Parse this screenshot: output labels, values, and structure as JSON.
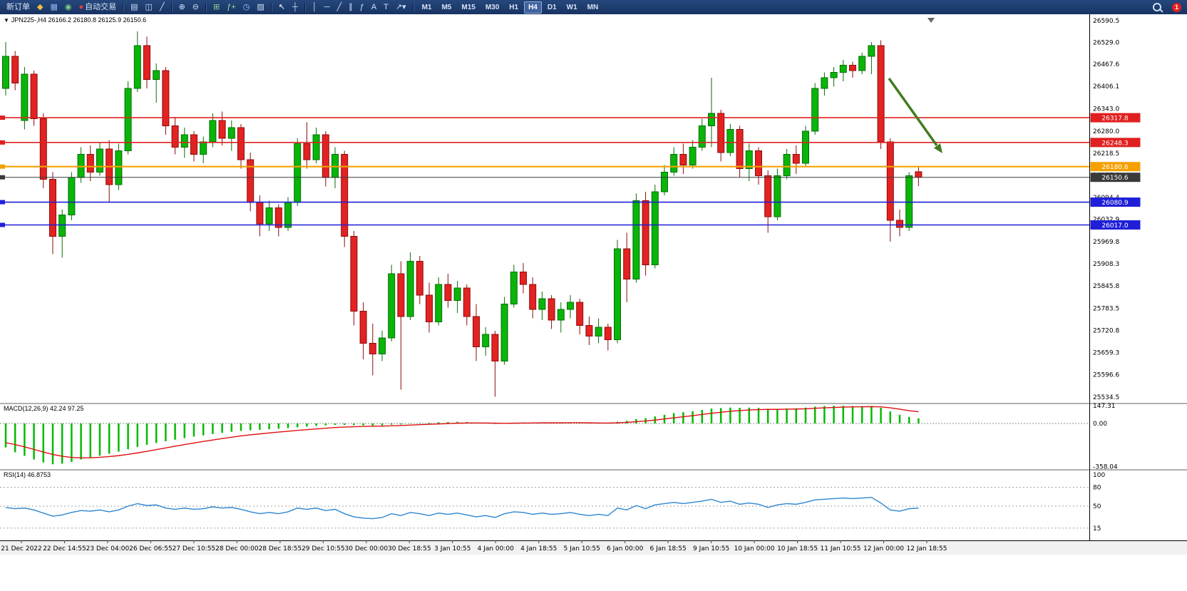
{
  "toolbar": {
    "items": [
      {
        "name": "new-order-button",
        "label": "新订单"
      },
      {
        "name": "metaeditor-button",
        "icon": "metaeditor-icon",
        "glyph": "◆",
        "color": "#f0c040"
      },
      {
        "name": "market-watch-button",
        "icon": "market-watch-icon",
        "glyph": "▦",
        "color": "#8ab4f8"
      },
      {
        "name": "navigator-button",
        "icon": "navigator-icon",
        "glyph": "◉",
        "color": "#7fd07f"
      },
      {
        "name": "auto-trading-button",
        "icon": "auto-trading-icon",
        "glyph": "●",
        "color": "#e04040",
        "label": "自动交易"
      },
      {
        "type": "sep"
      },
      {
        "name": "bar-chart-button",
        "icon": "bar-chart-icon",
        "glyph": "▤",
        "color": "#cfe0f8"
      },
      {
        "name": "candlestick-chart-button",
        "icon": "candlestick-chart-icon",
        "glyph": "◫",
        "color": "#cfe0f8"
      },
      {
        "name": "line-chart-button",
        "icon": "line-chart-icon",
        "glyph": "╱",
        "color": "#cfe0f8"
      },
      {
        "type": "sep"
      },
      {
        "name": "zoom-in-button",
        "icon": "zoom-in-icon",
        "glyph": "⊕",
        "color": "#cfe0f8"
      },
      {
        "name": "zoom-out-button",
        "icon": "zoom-out-icon",
        "glyph": "⊖",
        "color": "#cfe0f8"
      },
      {
        "type": "sep"
      },
      {
        "name": "tile-windows-button",
        "icon": "tile-windows-icon",
        "glyph": "⊞",
        "color": "#8fd08f"
      },
      {
        "name": "indicators-button",
        "icon": "indicators-icon",
        "glyph": "ƒ+",
        "color": "#9fe09f"
      },
      {
        "name": "periods-button",
        "icon": "periods-icon",
        "glyph": "◷",
        "color": "#9ec5f8"
      },
      {
        "name": "templates-button",
        "icon": "templates-icon",
        "glyph": "▨",
        "color": "#cfe0f8"
      },
      {
        "type": "sep"
      },
      {
        "name": "cursor-button",
        "icon": "cursor-icon",
        "glyph": "↖",
        "color": "#ffffff"
      },
      {
        "name": "crosshair-button",
        "icon": "crosshair-icon",
        "glyph": "┼",
        "color": "#cfe0f8"
      },
      {
        "type": "sep"
      },
      {
        "name": "vertical-line-button",
        "icon": "vertical-line-icon",
        "glyph": "│",
        "color": "#cfe0f8"
      },
      {
        "name": "horizontal-line-button",
        "icon": "horizontal-line-icon",
        "glyph": "─",
        "color": "#cfe0f8"
      },
      {
        "name": "trendline-button",
        "icon": "trendline-icon",
        "glyph": "╱",
        "color": "#cfe0f8"
      },
      {
        "name": "equidistant-channel-button",
        "icon": "channel-icon",
        "glyph": "∥",
        "color": "#cfe0f8"
      },
      {
        "name": "fibonacci-button",
        "icon": "fibonacci-icon",
        "glyph": "ƒ",
        "color": "#cfe0f8"
      },
      {
        "name": "text-button",
        "icon": "text-icon",
        "glyph": "A",
        "color": "#cfe0f8"
      },
      {
        "name": "text-label-button",
        "icon": "text-label-icon",
        "glyph": "T",
        "color": "#cfe0f8"
      },
      {
        "name": "arrows-dropdown-button",
        "icon": "arrow-shapes-icon",
        "glyph": "↗▾",
        "color": "#cfe0f8"
      },
      {
        "type": "sep"
      }
    ],
    "timeframes": {
      "items": [
        "M1",
        "M5",
        "M15",
        "M30",
        "H1",
        "H4",
        "D1",
        "W1",
        "MN"
      ],
      "active": "H4"
    },
    "notification_count": "1"
  },
  "chart_data": {
    "type": "candlestick",
    "symbol": "JPN225-",
    "period": "H4",
    "header": {
      "symbol_period": "JPN225-,H4",
      "ohlc": "26166.2 26180.8 26125.9 26150.6",
      "one_click_glyph": "▼"
    },
    "current_ohlc": {
      "open": 26166.2,
      "high": 26180.8,
      "low": 26125.9,
      "close": 26150.6
    },
    "colors": {
      "bull": "#09b509",
      "bull_border": "#056e05",
      "bear": "#e32222",
      "bear_border": "#8e0b0b",
      "macd_histogram": "#00bb00",
      "macd_signal": "#dd1111",
      "rsi": "#2e86d0",
      "arrow": "#3f7d1f",
      "resistance": "#e02020",
      "pivot": "#f5a000",
      "support": "#1f1fd8",
      "current_price": "#3a3a3a"
    },
    "price_axis": {
      "labels": [
        {
          "t": "26590.5",
          "v": 26590.5
        },
        {
          "t": "26529.0",
          "v": 26529.0
        },
        {
          "t": "26467.6",
          "v": 26467.6
        },
        {
          "t": "26406.1",
          "v": 26406.1
        },
        {
          "t": "26343.0",
          "v": 26343.0
        },
        {
          "t": "26280.0",
          "v": 26280.0
        },
        {
          "t": "26218.5",
          "v": 26218.5
        },
        {
          "t": "26157.0",
          "v": 26157.0
        },
        {
          "t": "26094.4",
          "v": 26094.4
        },
        {
          "t": "26032.9",
          "v": 26032.9
        },
        {
          "t": "25969.8",
          "v": 25969.8
        },
        {
          "t": "25908.3",
          "v": 25908.3
        },
        {
          "t": "25845.8",
          "v": 25845.8
        },
        {
          "t": "25783.5",
          "v": 25783.5
        },
        {
          "t": "25720.8",
          "v": 25720.8
        },
        {
          "t": "25659.3",
          "v": 25659.3
        },
        {
          "t": "25596.6",
          "v": 25596.6
        },
        {
          "t": "25534.5",
          "v": 25534.5
        }
      ]
    },
    "hlines": [
      {
        "name": "resistance-line-1",
        "label": "26317.8",
        "value": 26317.8,
        "color": "#e02020",
        "width": 1.6
      },
      {
        "name": "resistance-line-2",
        "label": "26248.3",
        "value": 26248.3,
        "color": "#e02020",
        "width": 1.6
      },
      {
        "name": "pivot-line",
        "label": "26180.6",
        "value": 26180.6,
        "color": "#f5a000",
        "width": 2.2
      },
      {
        "name": "current-price-line",
        "label": "26150.6",
        "value": 26150.6,
        "color": "#3a3a3a",
        "width": 1
      },
      {
        "name": "support-line-1",
        "label": "26080.9",
        "value": 26080.9,
        "color": "#1f1fd8",
        "width": 1.6
      },
      {
        "name": "support-line-2",
        "label": "26017.0",
        "value": 26017.0,
        "color": "#1f1fd8",
        "width": 1.6
      }
    ],
    "annotations": {
      "arrow": {
        "from": [
          1247,
          90
        ],
        "to": [
          1322,
          195
        ],
        "color": "#3f7d1f"
      }
    },
    "time_axis": {
      "labels": [
        "21 Dec 2022",
        "22 Dec 14:55",
        "23 Dec 04:00",
        "26 Dec 06:55",
        "27 Dec 10:55",
        "28 Dec 00:00",
        "28 Dec 18:55",
        "29 Dec 10:55",
        "30 Dec 00:00",
        "30 Dec 18:55",
        "3 Jan 10:55",
        "4 Jan 00:00",
        "4 Jan 18:55",
        "5 Jan 10:55",
        "6 Jan 00:00",
        "6 Jan 18:55",
        "9 Jan 10:55",
        "10 Jan 00:00",
        "10 Jan 18:55",
        "11 Jan 10:55",
        "12 Jan 00:00",
        "12 Jan 18:55"
      ]
    },
    "candles": [
      [
        26400,
        26530,
        26380,
        26490
      ],
      [
        26490,
        26505,
        26395,
        26415
      ],
      [
        26310,
        26460,
        26285,
        26440
      ],
      [
        26440,
        26450,
        26295,
        26315
      ],
      [
        26315,
        26330,
        26120,
        26145
      ],
      [
        26145,
        26165,
        25935,
        25985
      ],
      [
        25985,
        26060,
        25925,
        26045
      ],
      [
        26045,
        26165,
        26030,
        26150
      ],
      [
        26150,
        26235,
        26135,
        26215
      ],
      [
        26215,
        26240,
        26140,
        26165
      ],
      [
        26165,
        26250,
        26155,
        26230
      ],
      [
        26230,
        26255,
        26080,
        26130
      ],
      [
        26130,
        26245,
        26115,
        26225
      ],
      [
        26225,
        26420,
        26215,
        26400
      ],
      [
        26400,
        26560,
        26390,
        26520
      ],
      [
        26520,
        26545,
        26400,
        26425
      ],
      [
        26425,
        26470,
        26360,
        26450
      ],
      [
        26450,
        26460,
        26270,
        26295
      ],
      [
        26295,
        26320,
        26215,
        26235
      ],
      [
        26235,
        26290,
        26205,
        26270
      ],
      [
        26270,
        26280,
        26195,
        26215
      ],
      [
        26215,
        26265,
        26190,
        26250
      ],
      [
        26250,
        26330,
        26235,
        26310
      ],
      [
        26310,
        26335,
        26240,
        26260
      ],
      [
        26260,
        26310,
        26225,
        26290
      ],
      [
        26290,
        26300,
        26175,
        26200
      ],
      [
        26200,
        26220,
        26055,
        26080
      ],
      [
        26080,
        26100,
        25985,
        26020
      ],
      [
        26020,
        26085,
        26000,
        26065
      ],
      [
        26065,
        26075,
        25985,
        26010
      ],
      [
        26010,
        26095,
        26000,
        26080
      ],
      [
        26080,
        26260,
        26070,
        26245
      ],
      [
        26245,
        26305,
        26175,
        26200
      ],
      [
        26200,
        26290,
        26190,
        26270
      ],
      [
        26270,
        26280,
        26125,
        26150
      ],
      [
        26150,
        26235,
        26120,
        26215
      ],
      [
        26215,
        26225,
        25955,
        25985
      ],
      [
        25985,
        26000,
        25735,
        25775
      ],
      [
        25775,
        25800,
        25640,
        25685
      ],
      [
        25685,
        25740,
        25595,
        25655
      ],
      [
        25655,
        25720,
        25635,
        25700
      ],
      [
        25700,
        25905,
        25690,
        25880
      ],
      [
        25880,
        25915,
        25555,
        25760
      ],
      [
        25760,
        25940,
        25750,
        25915
      ],
      [
        25915,
        25930,
        25795,
        25820
      ],
      [
        25820,
        25855,
        25715,
        25745
      ],
      [
        25745,
        25870,
        25735,
        25850
      ],
      [
        25850,
        25880,
        25785,
        25805
      ],
      [
        25805,
        25860,
        25770,
        25840
      ],
      [
        25840,
        25850,
        25735,
        25760
      ],
      [
        25760,
        25795,
        25635,
        25675
      ],
      [
        25675,
        25730,
        25650,
        25710
      ],
      [
        25710,
        25720,
        25535,
        25635
      ],
      [
        25635,
        25815,
        25625,
        25795
      ],
      [
        25795,
        25905,
        25785,
        25885
      ],
      [
        25885,
        25910,
        25825,
        25850
      ],
      [
        25850,
        25870,
        25755,
        25780
      ],
      [
        25780,
        25830,
        25750,
        25810
      ],
      [
        25810,
        25820,
        25725,
        25750
      ],
      [
        25750,
        25800,
        25715,
        25780
      ],
      [
        25780,
        25820,
        25755,
        25800
      ],
      [
        25800,
        25810,
        25710,
        25735
      ],
      [
        25735,
        25760,
        25680,
        25705
      ],
      [
        25705,
        25755,
        25685,
        25730
      ],
      [
        25730,
        25740,
        25665,
        25695
      ],
      [
        25695,
        25975,
        25685,
        25950
      ],
      [
        25950,
        25995,
        25800,
        25865
      ],
      [
        25865,
        26105,
        25855,
        26085
      ],
      [
        26085,
        26110,
        25875,
        25905
      ],
      [
        25905,
        26130,
        25895,
        26110
      ],
      [
        26110,
        26185,
        26100,
        26165
      ],
      [
        26165,
        26235,
        26155,
        26215
      ],
      [
        26215,
        26245,
        26160,
        26185
      ],
      [
        26185,
        26255,
        26175,
        26235
      ],
      [
        26235,
        26315,
        26225,
        26295
      ],
      [
        26295,
        26430,
        26235,
        26330
      ],
      [
        26330,
        26340,
        26195,
        26220
      ],
      [
        26220,
        26300,
        26210,
        26285
      ],
      [
        26285,
        26295,
        26150,
        26175
      ],
      [
        26175,
        26245,
        26140,
        26225
      ],
      [
        26225,
        26235,
        26130,
        26155
      ],
      [
        26155,
        26170,
        25995,
        26040
      ],
      [
        26040,
        26175,
        26030,
        26155
      ],
      [
        26155,
        26230,
        26145,
        26215
      ],
      [
        26215,
        26240,
        26160,
        26190
      ],
      [
        26190,
        26295,
        26180,
        26280
      ],
      [
        26280,
        26415,
        26270,
        26400
      ],
      [
        26400,
        26445,
        26380,
        26430
      ],
      [
        26430,
        26460,
        26405,
        26445
      ],
      [
        26445,
        26480,
        26420,
        26465
      ],
      [
        26465,
        26475,
        26430,
        26450
      ],
      [
        26450,
        26500,
        26440,
        26490
      ],
      [
        26490,
        26530,
        26440,
        26520
      ],
      [
        26520,
        26535,
        26230,
        26250
      ],
      [
        26250,
        26260,
        25970,
        26030
      ],
      [
        26030,
        26060,
        25985,
        26010
      ],
      [
        26010,
        26165,
        26000,
        26155
      ],
      [
        26166.2,
        26180.8,
        26125.9,
        26150.6
      ]
    ],
    "macd": {
      "label": "MACD(12,26,9) 42.24 97.25",
      "params": "12,26,9",
      "current_main": 42.24,
      "current_signal": 97.25,
      "axis": [
        {
          "t": "147.31",
          "v": 147.31
        },
        {
          "t": "0.00",
          "v": 0
        },
        {
          "t": "-358.04",
          "v": -358.04
        }
      ],
      "histogram": [
        -200,
        -240,
        -270,
        -300,
        -325,
        -340,
        -335,
        -320,
        -300,
        -285,
        -268,
        -252,
        -235,
        -215,
        -195,
        -178,
        -162,
        -148,
        -135,
        -122,
        -110,
        -99,
        -88,
        -78,
        -69,
        -62,
        -57,
        -53,
        -48,
        -44,
        -39,
        -32,
        -26,
        -20,
        -16,
        -12,
        -12,
        -14,
        -16,
        -18,
        -16,
        -10,
        -8,
        -2,
        4,
        6,
        10,
        12,
        14,
        12,
        6,
        2,
        -4,
        -2,
        4,
        8,
        8,
        8,
        6,
        6,
        8,
        6,
        2,
        2,
        0,
        14,
        22,
        36,
        44,
        58,
        72,
        86,
        94,
        102,
        112,
        124,
        128,
        132,
        130,
        132,
        130,
        122,
        120,
        124,
        126,
        132,
        140,
        145,
        147,
        147,
        145,
        144,
        145,
        130,
        100,
        72,
        55,
        42.24
      ],
      "signal": [
        -160,
        -176,
        -195,
        -216,
        -238,
        -258,
        -273,
        -283,
        -286,
        -286,
        -282,
        -276,
        -268,
        -257,
        -245,
        -232,
        -218,
        -204,
        -190,
        -176,
        -163,
        -150,
        -138,
        -126,
        -115,
        -104,
        -95,
        -87,
        -79,
        -72,
        -65,
        -58,
        -52,
        -46,
        -40,
        -34,
        -30,
        -27,
        -25,
        -23,
        -22,
        -20,
        -17,
        -14,
        -10,
        -7,
        -4,
        -1,
        2,
        4,
        4,
        4,
        2,
        1,
        2,
        3,
        4,
        5,
        5,
        5,
        6,
        6,
        5,
        4,
        3,
        5,
        9,
        14,
        20,
        28,
        37,
        47,
        56,
        65,
        75,
        85,
        93,
        101,
        107,
        112,
        115,
        117,
        117,
        119,
        120,
        122,
        126,
        130,
        133,
        136,
        138,
        139,
        140,
        138,
        130,
        119,
        106,
        97.25
      ]
    },
    "rsi": {
      "label": "RSI(14) 46.8753",
      "period": 14,
      "current": 46.8753,
      "axis": [
        {
          "t": "100",
          "v": 100
        },
        {
          "t": "80",
          "v": 80
        },
        {
          "t": "50",
          "v": 50
        },
        {
          "t": "15",
          "v": 15
        }
      ],
      "levels": [
        80,
        50,
        15
      ],
      "values": [
        48,
        46,
        47,
        44,
        39,
        34,
        36,
        40,
        43,
        42,
        44,
        41,
        44,
        50,
        54,
        51,
        52,
        47,
        45,
        47,
        45,
        46,
        49,
        47,
        48,
        45,
        41,
        38,
        40,
        38,
        41,
        47,
        45,
        47,
        43,
        45,
        38,
        33,
        31,
        30,
        32,
        38,
        35,
        40,
        38,
        35,
        39,
        37,
        39,
        36,
        33,
        35,
        32,
        38,
        41,
        40,
        37,
        39,
        37,
        38,
        40,
        37,
        35,
        37,
        35,
        47,
        44,
        51,
        46,
        52,
        54,
        56,
        54,
        56,
        58,
        61,
        56,
        58,
        53,
        55,
        53,
        48,
        52,
        54,
        53,
        56,
        60,
        61,
        62,
        63,
        62,
        63,
        64,
        55,
        44,
        42,
        46,
        46.88
      ]
    }
  }
}
